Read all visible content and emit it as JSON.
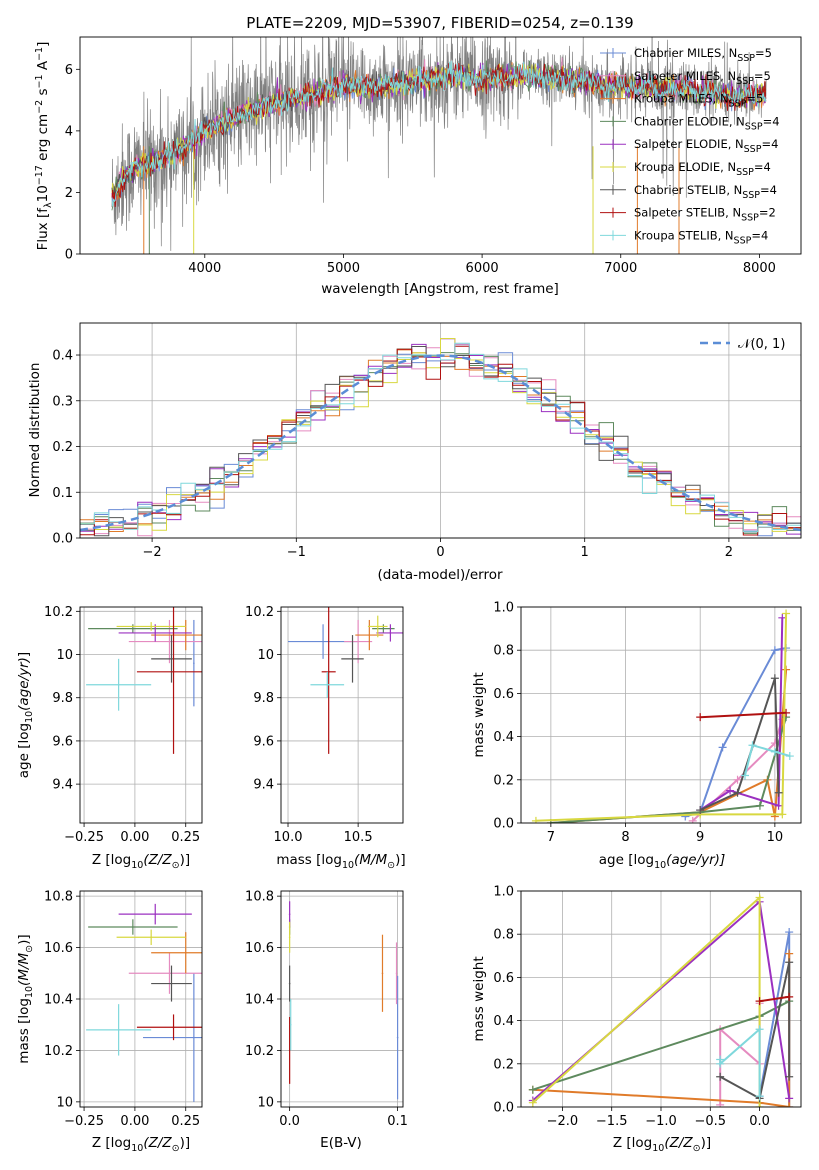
{
  "figure": {
    "title": "PLATE=2209, MJD=53907, FIBERID=0254, z=0.139"
  },
  "legend": {
    "items": [
      {
        "label": "Chabrier MILES, N",
        "sub": "SSP",
        "tail": "=5",
        "color": "#6a8bd6"
      },
      {
        "label": "Salpeter MILES, N",
        "sub": "SSP",
        "tail": "=5",
        "color": "#e58bc0"
      },
      {
        "label": "Kroupa MILES, N",
        "sub": "SSP",
        "tail": "=5",
        "color": "#e07b2a"
      },
      {
        "label": "Chabrier ELODIE, N",
        "sub": "SSP",
        "tail": "=4",
        "color": "#5e8a5e"
      },
      {
        "label": "Salpeter ELODIE, N",
        "sub": "SSP",
        "tail": "=4",
        "color": "#9b30c0"
      },
      {
        "label": "Kroupa ELODIE, N",
        "sub": "SSP",
        "tail": "=4",
        "color": "#d8d840"
      },
      {
        "label": "Chabrier STELIB, N",
        "sub": "SSP",
        "tail": "=4",
        "color": "#555555"
      },
      {
        "label": "Salpeter STELIB, N",
        "sub": "SSP",
        "tail": "=2",
        "color": "#b01010"
      },
      {
        "label": "Kroupa STELIB, N",
        "sub": "SSP",
        "tail": "=4",
        "color": "#7fd8dc"
      }
    ],
    "normal_label": "𝒩(0, 1)"
  },
  "chart_data": [
    {
      "id": "spectrum",
      "type": "line",
      "xlabel": "wavelength [Angstrom, rest frame]",
      "ylabel": "Flux [f",
      "ylabel_sub": "λ",
      "ylabel_rest": "10",
      "ylabel_sup": "−17",
      "ylabel_tail": " erg cm",
      "ylabel_sup2": "−2",
      "ylabel_tail2": " s",
      "ylabel_sup3": "−1",
      "ylabel_tail3": " A",
      "ylabel_sup4": "−1",
      "ylabel_end": "]",
      "xlim": [
        3100,
        8300
      ],
      "ylim": [
        0,
        7.05
      ],
      "xticks": [
        4000,
        5000,
        6000,
        7000,
        8000
      ],
      "yticks": [
        0,
        2,
        4,
        6
      ],
      "data_range": [
        3330,
        8050
      ],
      "smooth_profile": [
        [
          3330,
          1.8
        ],
        [
          3400,
          2.4
        ],
        [
          3500,
          2.8
        ],
        [
          3700,
          3.1
        ],
        [
          3900,
          3.6
        ],
        [
          4000,
          4.0
        ],
        [
          4100,
          4.2
        ],
        [
          4300,
          4.6
        ],
        [
          4500,
          4.9
        ],
        [
          4800,
          5.2
        ],
        [
          5000,
          5.5
        ],
        [
          5200,
          5.4
        ],
        [
          5500,
          5.6
        ],
        [
          5800,
          5.8
        ],
        [
          6000,
          5.7
        ],
        [
          6300,
          5.8
        ],
        [
          6600,
          5.7
        ],
        [
          6900,
          5.5
        ],
        [
          7200,
          5.4
        ],
        [
          7500,
          5.35
        ],
        [
          7800,
          5.1
        ],
        [
          8050,
          5.2
        ]
      ]
    },
    {
      "id": "residual-histogram",
      "type": "histogram",
      "xlabel": "(data-model)/error",
      "ylabel": "Normed distribution",
      "xlim": [
        -2.5,
        2.5
      ],
      "ylim": [
        0,
        0.47
      ],
      "xticks": [
        -2,
        -1,
        0,
        1,
        2
      ],
      "xtick_labels": [
        "−2",
        "−1",
        "0",
        "1",
        "2"
      ],
      "yticks": [
        0.0,
        0.1,
        0.2,
        0.3,
        0.4
      ],
      "ytick_labels": [
        "0.0",
        "0.1",
        "0.2",
        "0.3",
        "0.4"
      ],
      "bin_width": 0.1,
      "normal_pdf": {
        "mu": 0,
        "sigma": 1
      }
    },
    {
      "id": "age-vs-Z",
      "type": "scatter",
      "xlabel": "Z [log",
      "xlabel_sub": "10",
      "xlabel_tail": "(Z/Z",
      "xlabel_sub2": "⊙",
      "xlabel_end": ")]",
      "ylabel": "age  [log10(age/yr)]",
      "xlim": [
        -0.27,
        0.33
      ],
      "ylim": [
        9.22,
        10.22
      ],
      "xticks": [
        -0.25,
        0.0,
        0.25
      ],
      "xtick_labels": [
        "−0.25",
        "0.00",
        "0.25"
      ],
      "yticks": [
        9.4,
        9.6,
        9.8,
        10.0,
        10.2
      ],
      "points": [
        {
          "series": "Chabrier MILES",
          "x": 0.29,
          "y": 9.96,
          "xerr": 0.0,
          "yerr": 0.2
        },
        {
          "series": "Salpeter MILES",
          "x": 0.17,
          "y": 10.06,
          "xerr": 0.2,
          "yerr": 0.1
        },
        {
          "series": "Kroupa MILES",
          "x": 0.25,
          "y": 10.09,
          "xerr": 0.17,
          "yerr": 0.07
        },
        {
          "series": "Chabrier ELODIE",
          "x": -0.01,
          "y": 10.12,
          "xerr": 0.22,
          "yerr": 0.02
        },
        {
          "series": "Salpeter ELODIE",
          "x": 0.1,
          "y": 10.1,
          "xerr": 0.18,
          "yerr": 0.04
        },
        {
          "series": "Kroupa ELODIE",
          "x": 0.08,
          "y": 10.13,
          "xerr": 0.17,
          "yerr": 0.02
        },
        {
          "series": "Chabrier STELIB",
          "x": 0.18,
          "y": 9.98,
          "xerr": 0.1,
          "yerr": 0.11
        },
        {
          "series": "Salpeter STELIB",
          "x": 0.19,
          "y": 9.92,
          "xerr": 0.18,
          "yerr": 0.38
        },
        {
          "series": "Kroupa STELIB",
          "x": -0.08,
          "y": 9.86,
          "xerr": 0.16,
          "yerr": 0.12
        }
      ]
    },
    {
      "id": "age-vs-mass",
      "type": "scatter",
      "xlabel": "mass [log",
      "xlabel_sub": "10",
      "xlabel_tail": "(M/M",
      "xlabel_sub2": "⊙",
      "xlabel_end": ")]",
      "xlim": [
        9.95,
        10.82
      ],
      "ylim": [
        9.22,
        10.22
      ],
      "xticks": [
        10.0,
        10.5
      ],
      "xtick_labels": [
        "10.0",
        "10.5"
      ],
      "yticks": [
        9.4,
        9.6,
        9.8,
        10.0,
        10.2
      ],
      "points": [
        {
          "series": "Chabrier MILES",
          "x": 10.25,
          "y": 10.06,
          "xerr": 0.25,
          "yerr": 0.08
        },
        {
          "series": "Salpeter MILES",
          "x": 10.5,
          "y": 10.06,
          "xerr": 0.1,
          "yerr": 0.1
        },
        {
          "series": "Kroupa MILES",
          "x": 10.58,
          "y": 10.09,
          "xerr": 0.1,
          "yerr": 0.07
        },
        {
          "series": "Chabrier ELODIE",
          "x": 10.68,
          "y": 10.12,
          "xerr": 0.08,
          "yerr": 0.02
        },
        {
          "series": "Salpeter ELODIE",
          "x": 10.73,
          "y": 10.1,
          "xerr": 0.1,
          "yerr": 0.04
        },
        {
          "series": "Kroupa ELODIE",
          "x": 10.64,
          "y": 10.13,
          "xerr": 0.07,
          "yerr": 0.05
        },
        {
          "series": "Chabrier STELIB",
          "x": 10.46,
          "y": 9.98,
          "xerr": 0.08,
          "yerr": 0.11
        },
        {
          "series": "Salpeter STELIB",
          "x": 10.29,
          "y": 9.92,
          "xerr": 0.05,
          "yerr": 0.38
        },
        {
          "series": "Kroupa STELIB",
          "x": 10.28,
          "y": 9.86,
          "xerr": 0.12,
          "yerr": 0.06
        }
      ]
    },
    {
      "id": "weight-vs-age",
      "type": "line",
      "xlabel": "age  [log",
      "xlabel_sub": "10",
      "xlabel_tail": "(age/yr)]",
      "ylabel": "mass weight",
      "xlim": [
        6.6,
        10.35
      ],
      "ylim": [
        0.0,
        1.0
      ],
      "xticks": [
        7,
        8,
        9,
        10
      ],
      "yticks": [
        0.0,
        0.2,
        0.4,
        0.6,
        0.8,
        1.0
      ],
      "ytick_labels": [
        "0.0",
        "0.2",
        "0.4",
        "0.6",
        "0.8",
        "1.0"
      ],
      "series": [
        {
          "name": "Chabrier MILES",
          "x": [
            8.8,
            9.0,
            9.3,
            10.0,
            10.15
          ],
          "y": [
            0.03,
            0.05,
            0.35,
            0.8,
            0.81
          ]
        },
        {
          "name": "Salpeter MILES",
          "x": [
            8.9,
            9.5,
            10.0,
            10.1
          ],
          "y": [
            0.01,
            0.2,
            0.37,
            0.48
          ]
        },
        {
          "name": "Kroupa MILES",
          "x": [
            7.0,
            9.0,
            9.9,
            10.0,
            10.15
          ],
          "y": [
            0.0,
            0.05,
            0.2,
            0.03,
            0.71
          ]
        },
        {
          "name": "Chabrier ELODIE",
          "x": [
            7.0,
            9.0,
            9.8,
            10.15
          ],
          "y": [
            0.0,
            0.05,
            0.08,
            0.49
          ]
        },
        {
          "name": "Salpeter ELODIE",
          "x": [
            9.0,
            9.4,
            10.05,
            10.1
          ],
          "y": [
            0.06,
            0.15,
            0.08,
            0.95
          ]
        },
        {
          "name": "Kroupa ELODIE",
          "x": [
            6.8,
            9.0,
            10.1,
            10.15
          ],
          "y": [
            0.01,
            0.04,
            0.04,
            0.97
          ]
        },
        {
          "name": "Chabrier STELIB",
          "x": [
            9.0,
            9.5,
            10.0,
            10.05
          ],
          "y": [
            0.06,
            0.14,
            0.67,
            0.14
          ]
        },
        {
          "name": "Salpeter STELIB",
          "x": [
            9.0,
            10.15
          ],
          "y": [
            0.49,
            0.51
          ]
        },
        {
          "name": "Kroupa STELIB",
          "x": [
            9.6,
            9.7,
            10.0,
            10.2
          ],
          "y": [
            0.22,
            0.36,
            0.33,
            0.31
          ]
        }
      ]
    },
    {
      "id": "mass-vs-Z",
      "type": "scatter",
      "ylabel": "mass [log10(M/M⊙)]",
      "xlim": [
        -0.27,
        0.33
      ],
      "ylim": [
        9.98,
        10.82
      ],
      "xticks": [
        -0.25,
        0.0,
        0.25
      ],
      "xtick_labels": [
        "−0.25",
        "0.00",
        "0.25"
      ],
      "yticks": [
        10.0,
        10.2,
        10.4,
        10.6,
        10.8
      ],
      "points": [
        {
          "series": "Chabrier MILES",
          "x": 0.29,
          "y": 10.25,
          "xerr": 0.25,
          "yerr": 0.25
        },
        {
          "series": "Salpeter MILES",
          "x": 0.17,
          "y": 10.5,
          "xerr": 0.2,
          "yerr": 0.08
        },
        {
          "series": "Kroupa MILES",
          "x": 0.25,
          "y": 10.58,
          "xerr": 0.17,
          "yerr": 0.08
        },
        {
          "series": "Chabrier ELODIE",
          "x": -0.01,
          "y": 10.68,
          "xerr": 0.22,
          "yerr": 0.03
        },
        {
          "series": "Salpeter ELODIE",
          "x": 0.1,
          "y": 10.73,
          "xerr": 0.18,
          "yerr": 0.04
        },
        {
          "series": "Kroupa ELODIE",
          "x": 0.08,
          "y": 10.64,
          "xerr": 0.17,
          "yerr": 0.03
        },
        {
          "series": "Chabrier STELIB",
          "x": 0.18,
          "y": 10.46,
          "xerr": 0.1,
          "yerr": 0.07
        },
        {
          "series": "Salpeter STELIB",
          "x": 0.19,
          "y": 10.29,
          "xerr": 0.18,
          "yerr": 0.05
        },
        {
          "series": "Kroupa STELIB",
          "x": -0.08,
          "y": 10.28,
          "xerr": 0.16,
          "yerr": 0.1
        }
      ]
    },
    {
      "id": "mass-vs-ebv",
      "type": "scatter",
      "xlabel": "E(B-V)",
      "xlim": [
        -0.008,
        0.105
      ],
      "ylim": [
        9.98,
        10.82
      ],
      "xticks": [
        0.0,
        0.1
      ],
      "xtick_labels": [
        "0.0",
        "0.1"
      ],
      "yticks": [
        10.0,
        10.2,
        10.4,
        10.6,
        10.8
      ],
      "points": [
        {
          "series": "Chabrier MILES",
          "x": 0.1,
          "y": 10.25,
          "yerr": 0.24
        },
        {
          "series": "Salpeter MILES",
          "x": 0.099,
          "y": 10.5,
          "yerr": 0.12
        },
        {
          "series": "Kroupa MILES",
          "x": 0.086,
          "y": 10.5,
          "yerr": 0.15
        },
        {
          "series": "Chabrier ELODIE",
          "x": 0.0,
          "y": 10.68,
          "yerr": 0.03
        },
        {
          "series": "Salpeter ELODIE",
          "x": 0.0,
          "y": 10.73,
          "yerr": 0.05
        },
        {
          "series": "Kroupa ELODIE",
          "x": 0.0,
          "y": 10.64,
          "yerr": 0.06
        },
        {
          "series": "Chabrier STELIB",
          "x": 0.0,
          "y": 10.46,
          "yerr": 0.07
        },
        {
          "series": "Salpeter STELIB",
          "x": 0.0,
          "y": 10.2,
          "yerr": 0.13
        },
        {
          "series": "Kroupa STELIB",
          "x": 0.001,
          "y": 10.3,
          "yerr": 0.1
        }
      ]
    },
    {
      "id": "weight-vs-Z",
      "type": "line",
      "ylabel": "mass weight",
      "xlim": [
        -2.42,
        0.42
      ],
      "ylim": [
        0.0,
        1.0
      ],
      "xticks": [
        -2.0,
        -1.5,
        -1.0,
        -0.5,
        0.0
      ],
      "xtick_labels": [
        "−2.0",
        "−1.5",
        "−1.0",
        "−0.5",
        "0.0"
      ],
      "yticks": [
        0.0,
        0.2,
        0.4,
        0.6,
        0.8,
        1.0
      ],
      "ytick_labels": [
        "0.0",
        "0.2",
        "0.4",
        "0.6",
        "0.8",
        "1.0"
      ],
      "series": [
        {
          "name": "Chabrier MILES",
          "x": [
            0.0,
            0.3,
            0.3
          ],
          "y": [
            0.05,
            0.81,
            0.0
          ]
        },
        {
          "name": "Salpeter MILES",
          "x": [
            -0.4,
            -0.4,
            0.0,
            0.0
          ],
          "y": [
            0.01,
            0.36,
            0.2,
            0.48
          ]
        },
        {
          "name": "Kroupa MILES",
          "x": [
            -2.3,
            0.0,
            0.3,
            0.3
          ],
          "y": [
            0.08,
            0.02,
            0.0,
            0.71
          ]
        },
        {
          "name": "Chabrier ELODIE",
          "x": [
            -2.3,
            0.0,
            0.3
          ],
          "y": [
            0.08,
            0.42,
            0.49
          ]
        },
        {
          "name": "Salpeter ELODIE",
          "x": [
            -2.3,
            0.0,
            0.3
          ],
          "y": [
            0.03,
            0.95,
            0.04
          ]
        },
        {
          "name": "Kroupa ELODIE",
          "x": [
            -2.3,
            0.0,
            0.0
          ],
          "y": [
            0.02,
            0.97,
            0.0
          ]
        },
        {
          "name": "Chabrier STELIB",
          "x": [
            -0.4,
            0.0,
            0.3,
            0.3
          ],
          "y": [
            0.14,
            0.04,
            0.67,
            0.14
          ]
        },
        {
          "name": "Salpeter STELIB",
          "x": [
            0.0,
            0.3
          ],
          "y": [
            0.49,
            0.51
          ]
        },
        {
          "name": "Kroupa STELIB",
          "x": [
            -0.4,
            -0.4,
            0.0,
            0.0
          ],
          "y": [
            0.22,
            0.2,
            0.36,
            0.05
          ]
        }
      ]
    }
  ]
}
